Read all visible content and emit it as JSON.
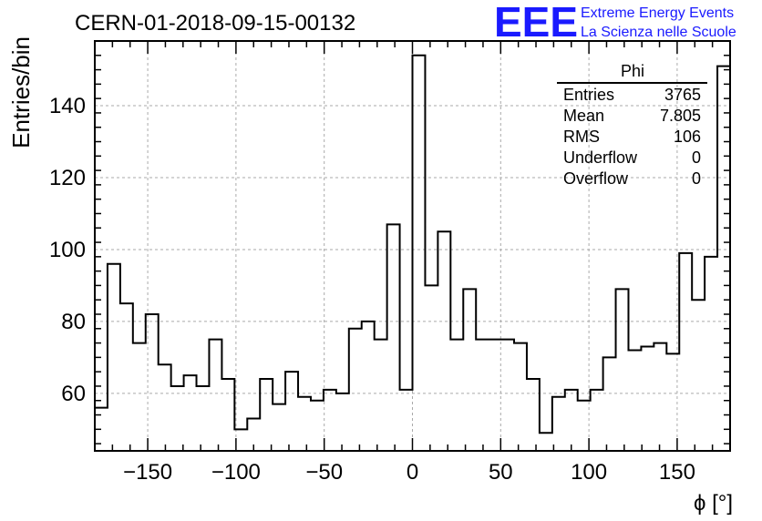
{
  "header": {
    "run_title": "CERN-01-2018-09-15-00132",
    "logo_text": "EEE",
    "logo_line1": "Extreme Energy Events",
    "logo_line2": "La Scienza nelle Scuole",
    "logo_color": "#1a1aff"
  },
  "chart_data": {
    "type": "bar",
    "histogram": true,
    "title": "",
    "xlabel": "ϕ [°]",
    "ylabel": "Entries/bin",
    "xlim": [
      -180,
      180
    ],
    "ylim": [
      44,
      158
    ],
    "grid": true,
    "bin_width": 7.2,
    "x_ticks": [
      -150,
      -100,
      -50,
      0,
      50,
      100,
      150
    ],
    "x_tick_labels": [
      "−150",
      "−100",
      "−50",
      "0",
      "50",
      "100",
      "150"
    ],
    "y_ticks": [
      60,
      80,
      100,
      120,
      140
    ],
    "y_tick_labels": [
      "60",
      "80",
      "100",
      "120",
      "140"
    ],
    "values": [
      56,
      96,
      85,
      74,
      82,
      68,
      62,
      65,
      62,
      75,
      64,
      50,
      53,
      64,
      57,
      66,
      59,
      58,
      61,
      60,
      78,
      80,
      75,
      107,
      61,
      154,
      90,
      105,
      75,
      89,
      75,
      75,
      75,
      74,
      64,
      49,
      59,
      61,
      58,
      61,
      70,
      89,
      72,
      73,
      74,
      71,
      99,
      86,
      98,
      151
    ],
    "line_color": "#000000"
  },
  "stats_box": {
    "title": "Phi",
    "rows": [
      {
        "label": "Entries",
        "value": "3765"
      },
      {
        "label": "Mean",
        "value": "7.805"
      },
      {
        "label": "RMS",
        "value": "106"
      },
      {
        "label": "Underflow",
        "value": "0"
      },
      {
        "label": "Overflow",
        "value": "0"
      }
    ]
  }
}
